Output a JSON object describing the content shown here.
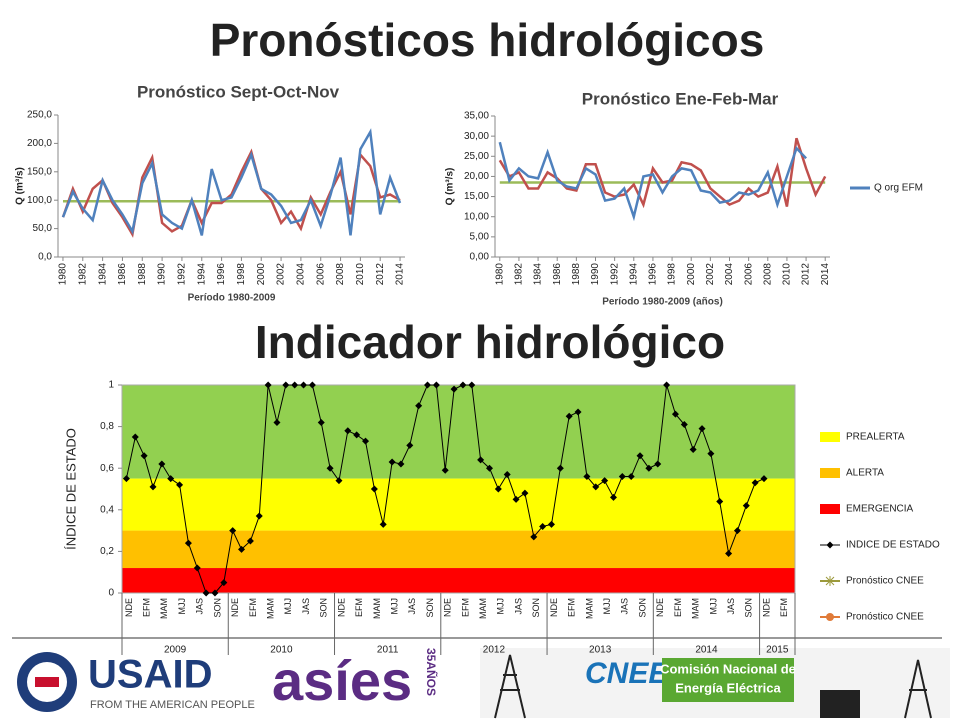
{
  "slide": {
    "title": "Pronósticos hidrológicos",
    "subtitle": "Indicador hidrológico"
  },
  "logos": {
    "usaid": "USAID",
    "usaid_tagline": "FROM THE AMERICAN PEOPLE",
    "asies": "asíes",
    "asies_badge": "35AÑOS",
    "cnee": "CNEE",
    "cnee_name": [
      "Comisión Nacional de",
      "Energía Eléctrica"
    ]
  },
  "chart_data": [
    {
      "type": "line",
      "title": "Pronóstico Sept-Oct-Nov",
      "x_label": "Período 1980-2009",
      "y_label": "Q (m³/s)",
      "x": [
        1980,
        1981,
        1982,
        1983,
        1984,
        1985,
        1986,
        1987,
        1988,
        1989,
        1990,
        1991,
        1992,
        1993,
        1994,
        1995,
        1996,
        1997,
        1998,
        1999,
        2000,
        2001,
        2002,
        2003,
        2004,
        2005,
        2006,
        2007,
        2008,
        2009,
        2010,
        2011,
        2012,
        2013,
        2014
      ],
      "xlim": [
        1979.5,
        2014.5
      ],
      "xticks": [
        1980,
        1982,
        1984,
        1986,
        1988,
        1990,
        1992,
        1994,
        1996,
        1998,
        2000,
        2002,
        2004,
        2006,
        2008,
        2010,
        2012,
        2014
      ],
      "ylim": [
        0,
        250
      ],
      "yticks": [
        {
          "value": 0,
          "label": "0,0"
        },
        {
          "value": 50,
          "label": "50,0"
        },
        {
          "value": 100,
          "label": "100,0"
        },
        {
          "value": 150,
          "label": "150,0"
        },
        {
          "value": 200,
          "label": "200,0"
        },
        {
          "value": 250,
          "label": "250,0"
        }
      ],
      "series": [
        {
          "color": "#4f81bd",
          "values": [
            70,
            115,
            85,
            65,
            135,
            100,
            75,
            45,
            130,
            165,
            75,
            60,
            50,
            100,
            38,
            155,
            100,
            105,
            140,
            180,
            120,
            110,
            90,
            60,
            65,
            100,
            55,
            110,
            175,
            38,
            190,
            220,
            75,
            140,
            95
          ]
        },
        {
          "color": "#c0504d",
          "values": [
            70,
            120,
            80,
            120,
            135,
            95,
            70,
            40,
            140,
            175,
            60,
            45,
            55,
            100,
            60,
            95,
            95,
            110,
            150,
            185,
            120,
            100,
            60,
            80,
            50,
            105,
            75,
            115,
            150,
            75,
            180,
            160,
            105,
            110,
            100
          ]
        },
        {
          "color": "#9bbb59",
          "values": [
            98,
            98,
            98,
            98,
            98,
            98,
            98,
            98,
            98,
            98,
            98,
            98,
            98,
            98,
            98,
            98,
            98,
            98,
            98,
            98,
            98,
            98,
            98,
            98,
            98,
            98,
            98,
            98,
            98,
            98,
            98,
            98,
            98,
            98,
            98
          ]
        }
      ]
    },
    {
      "type": "line",
      "title": "Pronóstico Ene-Feb-Mar",
      "x_label": "Período 1980-2009 (años)",
      "y_label": "Q (m³/s)",
      "x": [
        1980,
        1981,
        1982,
        1983,
        1984,
        1985,
        1986,
        1987,
        1988,
        1989,
        1990,
        1991,
        1992,
        1993,
        1994,
        1995,
        1996,
        1997,
        1998,
        1999,
        2000,
        2001,
        2002,
        2003,
        2004,
        2005,
        2006,
        2007,
        2008,
        2009,
        2010,
        2011,
        2012,
        2013,
        2014
      ],
      "xlim": [
        1979.5,
        2014.5
      ],
      "xticks": [
        1980,
        1982,
        1984,
        1986,
        1988,
        1990,
        1992,
        1994,
        1996,
        1998,
        2000,
        2002,
        2004,
        2006,
        2008,
        2010,
        2012,
        2014
      ],
      "ylim": [
        0,
        35
      ],
      "yticks": [
        {
          "value": 0,
          "label": "0,00"
        },
        {
          "value": 5,
          "label": "5,00"
        },
        {
          "value": 10,
          "label": "10,00"
        },
        {
          "value": 15,
          "label": "15,00"
        },
        {
          "value": 20,
          "label": "20,00"
        },
        {
          "value": 25,
          "label": "25,00"
        },
        {
          "value": 30,
          "label": "30,00"
        },
        {
          "value": 35,
          "label": "35,00"
        }
      ],
      "series": [
        {
          "name": "Q org EFM",
          "color": "#4f81bd",
          "values": [
            28.5,
            19,
            22,
            20,
            19.5,
            26,
            19,
            17.5,
            17,
            22,
            20.5,
            14,
            14.5,
            17,
            10,
            20,
            20.5,
            16,
            20,
            22,
            21.5,
            16.5,
            16,
            13.5,
            14,
            16,
            15.5,
            16.5,
            21,
            13,
            20,
            27,
            24.5,
            null,
            null
          ]
        },
        {
          "color": "#c0504d",
          "values": [
            24,
            20,
            21,
            17,
            17,
            21,
            19.5,
            17,
            16.5,
            23,
            23,
            16,
            15,
            15.5,
            18,
            13,
            22,
            18.5,
            19,
            23.5,
            23,
            21.5,
            17,
            15,
            13,
            14,
            17,
            15,
            16,
            22.5,
            12.5,
            29.5,
            22,
            15.5,
            20
          ]
        },
        {
          "color": "#9bbb59",
          "values": [
            18.5,
            18.5,
            18.5,
            18.5,
            18.5,
            18.5,
            18.5,
            18.5,
            18.5,
            18.5,
            18.5,
            18.5,
            18.5,
            18.5,
            18.5,
            18.5,
            18.5,
            18.5,
            18.5,
            18.5,
            18.5,
            18.5,
            18.5,
            18.5,
            18.5,
            18.5,
            18.5,
            18.5,
            18.5,
            18.5,
            18.5,
            18.5,
            18.5,
            18.5,
            18.5
          ]
        }
      ]
    },
    {
      "type": "indicator",
      "y_label": "ÍNDICE DE ESTADO",
      "categories": [
        "NDE",
        null,
        "EFM",
        null,
        "MAM",
        null,
        "MJJ",
        null,
        "JAS",
        null,
        "SON",
        null,
        "NDE",
        null,
        "EFM",
        null,
        "MAM",
        null,
        "MJJ",
        null,
        "JAS",
        null,
        "SON",
        null,
        "NDE",
        null,
        "EFM",
        null,
        "MAM",
        null,
        "MJJ",
        null,
        "JAS",
        null,
        "SON",
        null,
        "NDE",
        null,
        "EFM",
        null,
        "MAM",
        null,
        "MJJ",
        null,
        "JAS",
        null,
        "SON",
        null,
        "NDE",
        null,
        "EFM",
        null,
        "MAM",
        null,
        "MJJ",
        null,
        "JAS",
        null,
        "SON",
        null,
        "NDE",
        null,
        "EFM",
        null,
        "MAM",
        null,
        "MJJ",
        null,
        "JAS",
        null,
        "SON",
        null,
        "NDE",
        null,
        "EFM",
        null
      ],
      "groups": [
        "2009",
        "2010",
        "2011",
        "2012",
        "2013",
        "2014",
        "2015"
      ],
      "ylim": [
        0,
        1
      ],
      "yticks": [
        0,
        {
          "value": 0.2,
          "label": "0,2"
        },
        {
          "value": 0.4,
          "label": "0,4"
        },
        {
          "value": 0.6,
          "label": "0,6"
        },
        {
          "value": 0.8,
          "label": "0,8"
        },
        1
      ],
      "bands": [
        {
          "color": "#92d050",
          "range": [
            0.55,
            1
          ]
        },
        {
          "name": "PREALERTA",
          "color": "#ffff00",
          "range": [
            0.3,
            0.55
          ]
        },
        {
          "name": "ALERTA",
          "color": "#ffc000",
          "range": [
            0.12,
            0.3
          ]
        },
        {
          "name": "EMERGENCIA",
          "color": "#ff0000",
          "range": [
            0,
            0.12
          ]
        }
      ],
      "series": [
        {
          "name": "INDICE DE ESTADO",
          "color": "#000000",
          "values": [
            0.55,
            0.75,
            0.66,
            0.51,
            0.62,
            0.55,
            0.52,
            0.24,
            0.12,
            0,
            0,
            0.05,
            0.3,
            0.21,
            0.25,
            0.37,
            1,
            0.82,
            1,
            1,
            1,
            1,
            0.82,
            0.6,
            0.54,
            0.78,
            0.76,
            0.73,
            0.5,
            0.33,
            0.63,
            0.62,
            0.71,
            0.9,
            1,
            1,
            0.59,
            0.98,
            1,
            1,
            0.64,
            0.6,
            0.5,
            0.57,
            0.45,
            0.48,
            0.27,
            0.32,
            0.33,
            0.6,
            0.85,
            0.87,
            0.56,
            0.51,
            0.54,
            0.46,
            0.56,
            0.56,
            0.66,
            0.6,
            0.62,
            1,
            0.86,
            0.81,
            0.69,
            0.79,
            0.67,
            0.44,
            0.19,
            0.3,
            0.42,
            0.53,
            0.55,
            null,
            null,
            null
          ]
        }
      ],
      "extra_legend": [
        {
          "name": "Pronóstico CNEE",
          "color": "#9c9a3c"
        },
        {
          "name": "Pronóstico CNEE",
          "color": "#e07b39"
        }
      ]
    }
  ]
}
